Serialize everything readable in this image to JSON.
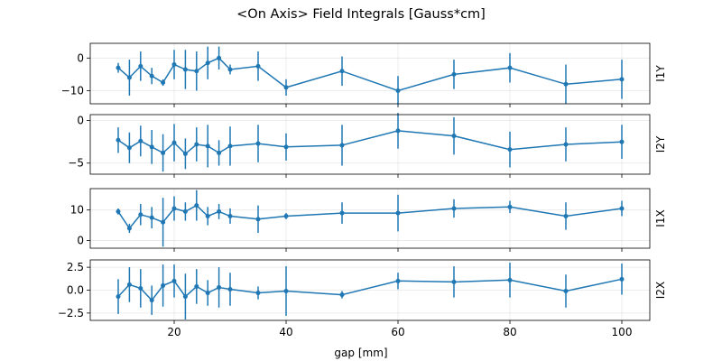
{
  "chart_data": {
    "type": "line",
    "title": "<On Axis> Field Integrals [Gauss*cm]",
    "xlabel": "gap [mm]",
    "shared_x": true,
    "xlim": [
      5,
      105
    ],
    "xticks": [
      20,
      40,
      60,
      80,
      100
    ],
    "x": [
      10,
      12,
      14,
      16,
      18,
      20,
      22,
      24,
      26,
      28,
      30,
      35,
      40,
      50,
      60,
      70,
      80,
      90,
      100
    ],
    "grid": true,
    "color": "#1f77b4",
    "panels": [
      {
        "ylabel": "I1Y",
        "ylim": [
          -14,
          4.5
        ],
        "yticks": [
          0,
          -10
        ],
        "values": [
          -3,
          -6,
          -2.5,
          -5.5,
          -7.5,
          -2,
          -3.5,
          -4,
          -1.5,
          0,
          -3.5,
          -2.5,
          -9,
          -4,
          -10,
          -5,
          -3,
          -8,
          -6.5
        ],
        "errors": [
          1.5,
          5.5,
          4.5,
          2.5,
          1,
          4.5,
          6,
          6,
          5,
          3.5,
          1.5,
          4.5,
          2.5,
          4.5,
          4.5,
          4.5,
          4.5,
          6,
          6
        ]
      },
      {
        "ylabel": "I2Y",
        "ylim": [
          -6.3,
          0.7
        ],
        "yticks": [
          0,
          -5
        ],
        "values": [
          -2.3,
          -3.2,
          -2.4,
          -3.1,
          -3.8,
          -2.6,
          -3.9,
          -2.8,
          -3,
          -3.8,
          -3,
          -2.7,
          -3.1,
          -2.9,
          -1.2,
          -1.8,
          -3.4,
          -2.8,
          -2.5
        ],
        "errors": [
          1.5,
          1.8,
          1.8,
          2,
          2.2,
          2.2,
          1.8,
          2,
          2.5,
          1.5,
          2.3,
          2.2,
          1.6,
          2.4,
          2.1,
          2.2,
          2.1,
          2,
          2
        ]
      },
      {
        "ylabel": "I1X",
        "ylim": [
          -2.5,
          17
        ],
        "yticks": [
          10,
          0
        ],
        "values": [
          9.5,
          4,
          8.5,
          7.5,
          6,
          10.5,
          9.5,
          11.5,
          8,
          9.5,
          8,
          7,
          8,
          9,
          9,
          10.5,
          11,
          8,
          10.5
        ],
        "errors": [
          1,
          1.5,
          3.5,
          3.5,
          8,
          4,
          3,
          5,
          3,
          2.5,
          2.5,
          4.5,
          1,
          3.5,
          6,
          3,
          2,
          4.5,
          2.5
        ]
      },
      {
        "ylabel": "I2X",
        "ylim": [
          -3.3,
          3.3
        ],
        "yticks": [
          2.5,
          0.0,
          -2.5
        ],
        "values": [
          -0.7,
          0.6,
          0.2,
          -1.1,
          0.5,
          1,
          -0.7,
          0.4,
          -0.3,
          0.3,
          0.1,
          -0.3,
          -0.1,
          -0.5,
          1,
          0.9,
          1.1,
          -0.1,
          1.2
        ],
        "errors": [
          1.9,
          1.9,
          2.1,
          1.6,
          2.3,
          1.8,
          2.5,
          1.9,
          1.4,
          2.2,
          1.8,
          0.7,
          2.7,
          0.4,
          0.9,
          1.7,
          1.9,
          1.8,
          1.7
        ]
      }
    ]
  }
}
